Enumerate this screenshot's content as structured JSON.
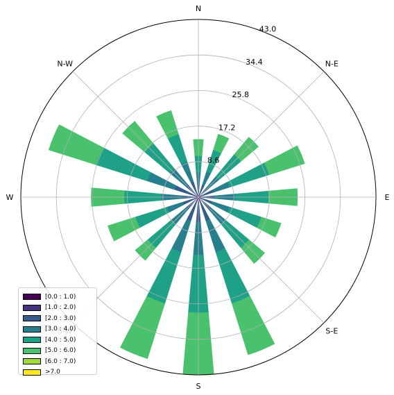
{
  "chart_data": {
    "type": "windrose",
    "direction_labels": [
      "E",
      "N-E",
      "N",
      "N-W",
      "W",
      "S-W",
      "S",
      "S-E"
    ],
    "radial_ticks": [
      8.6,
      17.2,
      25.8,
      34.4,
      43.0
    ],
    "radial_tick_labels": [
      "8.6",
      "17.2",
      "25.8",
      "34.4",
      "43.0"
    ],
    "rmax": 43.0,
    "legend": {
      "position": "lower-left",
      "entries": [
        "[0.0 : 1.0)",
        "[1.0 : 2.0)",
        "[2.0 : 3.0)",
        "[3.0 : 4.0)",
        "[4.0 : 5.0)",
        "[5.0 : 6.0)",
        "[6.0 : 7.0)",
        ">7.0"
      ]
    },
    "bin_colors": [
      "#440154",
      "#46327e",
      "#365c8d",
      "#277f8e",
      "#1fa187",
      "#4ac16d",
      "#a0da39",
      "#fde725"
    ],
    "sector_directions_deg": [
      0,
      22.5,
      45,
      67.5,
      90,
      112.5,
      135,
      157.5,
      180,
      202.5,
      225,
      247.5,
      270,
      292.5,
      315,
      337.5
    ],
    "cumulative_bounds": [
      [
        0.3,
        0.8,
        3.0,
        6.0,
        10.0,
        14.0
      ],
      [
        0.3,
        0.9,
        3.2,
        6.5,
        12.0,
        16.0
      ],
      [
        0.3,
        0.8,
        3.0,
        6.5,
        13.5,
        19.0
      ],
      [
        0.4,
        1.0,
        4.0,
        8.0,
        18.0,
        27.0
      ],
      [
        0.3,
        1.0,
        4.0,
        9.0,
        17.0,
        24.0
      ],
      [
        0.3,
        1.0,
        3.5,
        8.0,
        16.0,
        21.0
      ],
      [
        0.3,
        1.0,
        4.0,
        8.5,
        16.0,
        21.0
      ],
      [
        0.4,
        1.2,
        6.0,
        14.0,
        27.0,
        40.0
      ],
      [
        0.4,
        1.2,
        6.0,
        14.0,
        28.0,
        43.0
      ],
      [
        0.4,
        1.2,
        6.0,
        14.0,
        27.0,
        41.0
      ],
      [
        0.3,
        1.0,
        4.0,
        8.5,
        16.0,
        20.0
      ],
      [
        0.3,
        1.0,
        4.0,
        8.0,
        16.0,
        23.0
      ],
      [
        0.3,
        1.0,
        4.0,
        9.0,
        18.0,
        26.0
      ],
      [
        0.4,
        1.2,
        6.0,
        13.0,
        26.0,
        38.0
      ],
      [
        0.3,
        1.0,
        4.0,
        9.0,
        17.0,
        24.0
      ],
      [
        0.3,
        1.0,
        4.0,
        9.0,
        16.0,
        22.0
      ]
    ]
  }
}
